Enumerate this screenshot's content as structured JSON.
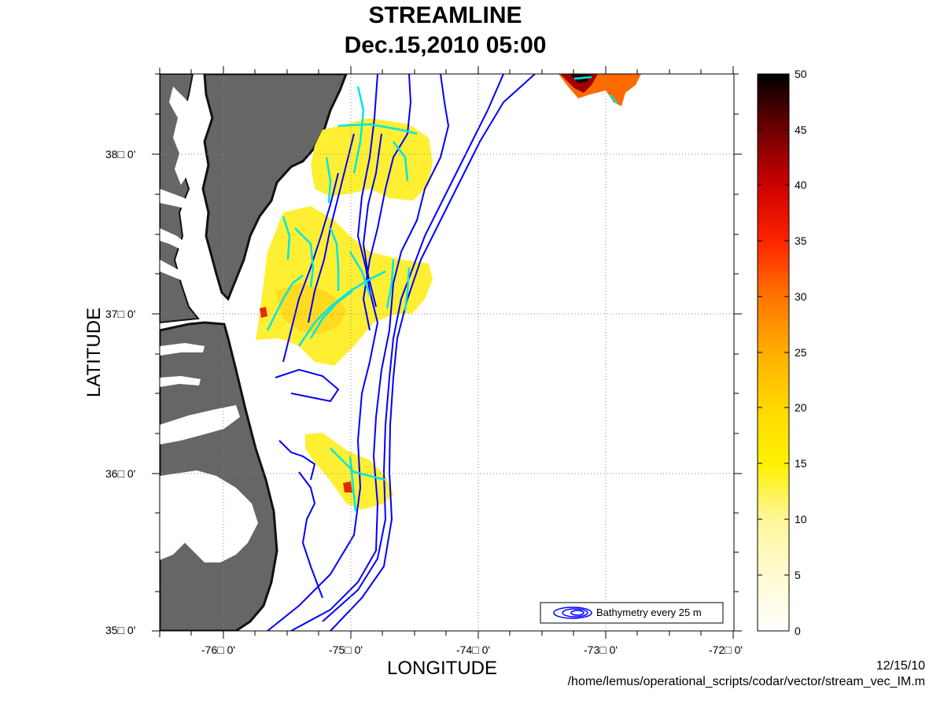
{
  "title": "STREAMLINE",
  "subtitle": "Dec.15,2010 05:00",
  "xlabel": "LONGITUDE",
  "ylabel": "LATITUDE",
  "x_ticks": [
    "-76□ 0'",
    "-75□ 0'",
    "-74□ 0'",
    "-73□ 0'",
    "-72□ 0'"
  ],
  "y_ticks": [
    "38□ 0'",
    "37□ 0'",
    "36□ 0'",
    "35□ 0'"
  ],
  "colorbar": {
    "ticks": [
      "50",
      "45",
      "40",
      "35",
      "30",
      "25",
      "20",
      "15",
      "10",
      "5",
      "0"
    ],
    "range": [
      0,
      50
    ],
    "colors": [
      "#ffffff",
      "#fffbd0",
      "#fff59a",
      "#fff200",
      "#ffd800",
      "#ffae00",
      "#ff7400",
      "#ff2400",
      "#cc0000",
      "#6e0000",
      "#000000"
    ]
  },
  "legend": {
    "label": "Bathymetry every 25 m",
    "icon": "bathymetry-contour-icon"
  },
  "footer": {
    "date": "12/15/10",
    "path": "/home/lemus/operational_scripts/codar/vector/stream_vec_IM.m"
  },
  "colors": {
    "land": "#666666",
    "coast": "#111111",
    "bathymetry": "#0000ff",
    "streamline": "#00e5e5",
    "grid": "#888888"
  }
}
